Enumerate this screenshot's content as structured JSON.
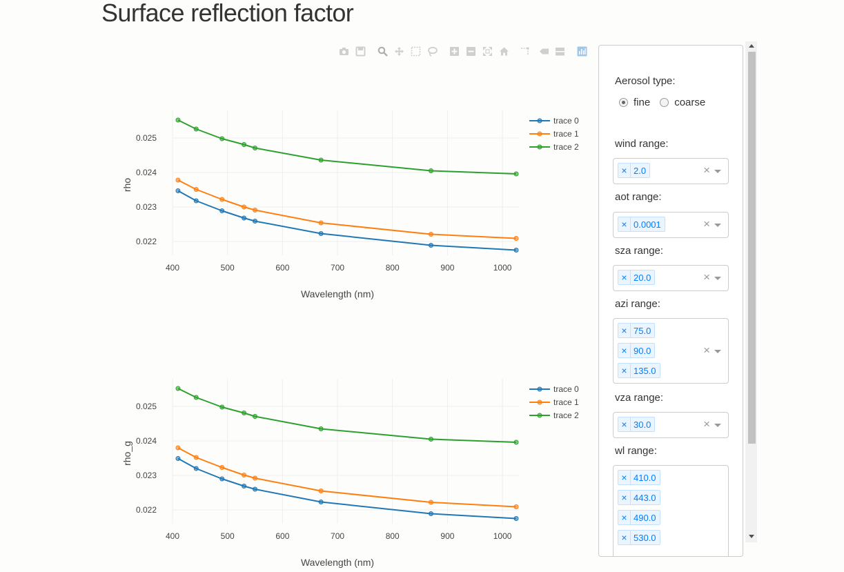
{
  "title": "Surface reflection factor",
  "toolbar": [
    {
      "name": "download-plot-button",
      "icon": "camera-icon"
    },
    {
      "name": "save-plot-button",
      "icon": "save-icon"
    },
    {
      "name": "zoom-button",
      "icon": "zoom-icon"
    },
    {
      "name": "pan-button",
      "icon": "pan-icon"
    },
    {
      "name": "box-select-button",
      "icon": "box-select-icon"
    },
    {
      "name": "lasso-select-button",
      "icon": "lasso-icon"
    },
    {
      "name": "zoom-in-button",
      "icon": "zoom-in-icon"
    },
    {
      "name": "zoom-out-button",
      "icon": "zoom-out-icon"
    },
    {
      "name": "autoscale-button",
      "icon": "autoscale-icon"
    },
    {
      "name": "reset-axes-button",
      "icon": "home-icon"
    },
    {
      "name": "spike-lines-button",
      "icon": "spike-lines-icon"
    },
    {
      "name": "hover-closest-button",
      "icon": "hover-closest-icon"
    },
    {
      "name": "hover-compare-button",
      "icon": "hover-compare-icon"
    },
    {
      "name": "plotly-logo-button",
      "icon": "plotly-logo-icon"
    }
  ],
  "chart_data": [
    {
      "type": "line",
      "xlabel": "Wavelength (nm)",
      "ylabel": "rho",
      "xlim": [
        400,
        1030
      ],
      "ylim": [
        0.0216,
        0.0258
      ],
      "xticks": [
        400,
        500,
        600,
        700,
        800,
        900,
        1000
      ],
      "yticks": [
        0.022,
        0.023,
        0.024,
        0.025
      ],
      "ytick_labels": [
        "0.022",
        "0.023",
        "0.024",
        "0.025"
      ],
      "grid": true,
      "legend": "top-right",
      "x": [
        410,
        443,
        490,
        530,
        550,
        670,
        870,
        1025
      ],
      "series": [
        {
          "name": "trace 0",
          "color": "#1f77b4",
          "values": [
            0.02347,
            0.02318,
            0.02289,
            0.02268,
            0.02259,
            0.02223,
            0.02189,
            0.02175
          ]
        },
        {
          "name": "trace 1",
          "color": "#ff7f0e",
          "values": [
            0.02378,
            0.02351,
            0.02322,
            0.023,
            0.02291,
            0.02254,
            0.02221,
            0.02209
          ]
        },
        {
          "name": "trace 2",
          "color": "#2ca02c",
          "values": [
            0.02552,
            0.02526,
            0.02498,
            0.02481,
            0.02471,
            0.02436,
            0.02405,
            0.02396
          ]
        }
      ]
    },
    {
      "type": "line",
      "xlabel": "Wavelength (nm)",
      "ylabel": "rho_g",
      "xlim": [
        400,
        1030
      ],
      "ylim": [
        0.0216,
        0.0258
      ],
      "xticks": [
        400,
        500,
        600,
        700,
        800,
        900,
        1000
      ],
      "yticks": [
        0.022,
        0.023,
        0.024,
        0.025
      ],
      "ytick_labels": [
        "0.022",
        "0.023",
        "0.024",
        "0.025"
      ],
      "grid": true,
      "legend": "top-right",
      "x": [
        410,
        443,
        490,
        530,
        550,
        670,
        870,
        1025
      ],
      "series": [
        {
          "name": "trace 0",
          "color": "#1f77b4",
          "values": [
            0.02349,
            0.0232,
            0.0229,
            0.02269,
            0.0226,
            0.02223,
            0.02189,
            0.02175
          ]
        },
        {
          "name": "trace 1",
          "color": "#ff7f0e",
          "values": [
            0.0238,
            0.02352,
            0.02323,
            0.02301,
            0.02292,
            0.02255,
            0.02222,
            0.02209
          ]
        },
        {
          "name": "trace 2",
          "color": "#2ca02c",
          "values": [
            0.02552,
            0.02526,
            0.02498,
            0.02481,
            0.02471,
            0.02435,
            0.02405,
            0.02396
          ]
        }
      ]
    }
  ],
  "panel": {
    "aerosol_label": "Aerosol type:",
    "aerosol_options": [
      "fine",
      "coarse"
    ],
    "aerosol_selected": "fine",
    "dropdowns": [
      {
        "name": "wind",
        "label": "wind range:",
        "values": [
          "2.0"
        ]
      },
      {
        "name": "aot",
        "label": "aot range:",
        "values": [
          "0.0001"
        ]
      },
      {
        "name": "sza",
        "label": "sza range:",
        "values": [
          "20.0"
        ]
      },
      {
        "name": "azi",
        "label": "azi range:",
        "values": [
          "75.0",
          "90.0",
          "135.0"
        ]
      },
      {
        "name": "vza",
        "label": "vza range:",
        "values": [
          "30.0"
        ]
      },
      {
        "name": "wl",
        "label": "wl range:",
        "values": [
          "410.0",
          "443.0",
          "490.0",
          "530.0"
        ]
      }
    ],
    "remove_symbol": "×",
    "clear_symbol": "×"
  }
}
